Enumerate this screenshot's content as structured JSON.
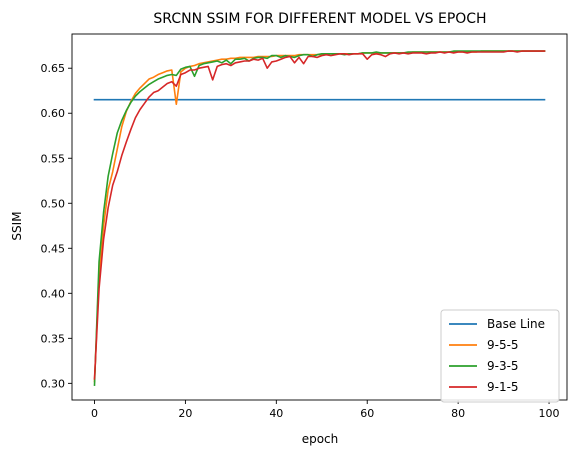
{
  "chart_data": {
    "type": "line",
    "title": "SRCNN SSIM FOR DIFFERENT MODEL VS EPOCH",
    "xlabel": "epoch",
    "ylabel": "SSIM",
    "xlim": [
      -4.95,
      103.95
    ],
    "ylim": [
      0.2815,
      0.688
    ],
    "xticks": [
      0,
      20,
      40,
      60,
      80,
      100
    ],
    "yticks": [
      0.3,
      0.35,
      0.4,
      0.45,
      0.5,
      0.55,
      0.6,
      0.65
    ],
    "xtick_labels": [
      "0",
      "20",
      "40",
      "60",
      "80",
      "100"
    ],
    "ytick_labels": [
      "0.30",
      "0.35",
      "0.40",
      "0.45",
      "0.50",
      "0.55",
      "0.60",
      "0.65"
    ],
    "grid": false,
    "legend_position": "lower-right",
    "series": [
      {
        "name": "Base Line",
        "color": "#1f77b4",
        "x": [
          0,
          99
        ],
        "y": [
          0.615,
          0.615
        ]
      },
      {
        "name": "9-5-5",
        "color": "#ff7f0e",
        "x": [
          0,
          1,
          2,
          3,
          4,
          5,
          6,
          7,
          8,
          9,
          10,
          11,
          12,
          13,
          14,
          15,
          16,
          17,
          18,
          19,
          20,
          21,
          22,
          23,
          24,
          25,
          26,
          27,
          28,
          29,
          30,
          31,
          32,
          33,
          34,
          35,
          36,
          37,
          38,
          39,
          40,
          41,
          42,
          43,
          44,
          45,
          46,
          47,
          48,
          49,
          50,
          51,
          52,
          53,
          54,
          55,
          56,
          57,
          58,
          59,
          60,
          61,
          62,
          63,
          64,
          65,
          66,
          67,
          68,
          69,
          70,
          71,
          72,
          73,
          74,
          75,
          76,
          77,
          78,
          79,
          80,
          81,
          82,
          83,
          84,
          85,
          86,
          87,
          88,
          89,
          90,
          91,
          92,
          93,
          94,
          95,
          96,
          97,
          98,
          99
        ],
        "y": [
          0.302,
          0.42,
          0.475,
          0.515,
          0.535,
          0.56,
          0.585,
          0.602,
          0.613,
          0.622,
          0.628,
          0.633,
          0.638,
          0.64,
          0.643,
          0.645,
          0.647,
          0.648,
          0.61,
          0.646,
          0.65,
          0.652,
          0.653,
          0.655,
          0.656,
          0.657,
          0.658,
          0.659,
          0.66,
          0.66,
          0.661,
          0.661,
          0.662,
          0.662,
          0.662,
          0.662,
          0.663,
          0.663,
          0.663,
          0.663,
          0.664,
          0.664,
          0.664,
          0.664,
          0.664,
          0.665,
          0.665,
          0.665,
          0.665,
          0.665,
          0.665,
          0.666,
          0.666,
          0.666,
          0.666,
          0.666,
          0.666,
          0.666,
          0.666,
          0.667,
          0.667,
          0.667,
          0.667,
          0.667,
          0.667,
          0.667,
          0.667,
          0.667,
          0.667,
          0.667,
          0.668,
          0.668,
          0.668,
          0.668,
          0.668,
          0.668,
          0.668,
          0.668,
          0.668,
          0.668,
          0.668,
          0.668,
          0.668,
          0.668,
          0.668,
          0.669,
          0.669,
          0.669,
          0.669,
          0.669,
          0.669,
          0.669,
          0.669,
          0.669,
          0.669,
          0.669,
          0.669,
          0.669,
          0.669,
          0.669
        ]
      },
      {
        "name": "9-3-5",
        "color": "#2ca02c",
        "x": [
          0,
          1,
          2,
          3,
          4,
          5,
          6,
          7,
          8,
          9,
          10,
          11,
          12,
          13,
          14,
          15,
          16,
          17,
          18,
          19,
          20,
          21,
          22,
          23,
          24,
          25,
          26,
          27,
          28,
          29,
          30,
          31,
          32,
          33,
          34,
          35,
          36,
          37,
          38,
          39,
          40,
          41,
          42,
          43,
          44,
          45,
          46,
          47,
          48,
          49,
          50,
          51,
          52,
          53,
          54,
          55,
          56,
          57,
          58,
          59,
          60,
          61,
          62,
          63,
          64,
          65,
          66,
          67,
          68,
          69,
          70,
          71,
          72,
          73,
          74,
          75,
          76,
          77,
          78,
          79,
          80,
          81,
          82,
          83,
          84,
          85,
          86,
          87,
          88,
          89,
          90,
          91,
          92,
          93,
          94,
          95,
          96,
          97,
          98,
          99
        ],
        "y": [
          0.298,
          0.435,
          0.49,
          0.53,
          0.555,
          0.578,
          0.592,
          0.603,
          0.612,
          0.619,
          0.624,
          0.628,
          0.632,
          0.635,
          0.638,
          0.64,
          0.642,
          0.643,
          0.642,
          0.649,
          0.651,
          0.652,
          0.641,
          0.653,
          0.655,
          0.656,
          0.657,
          0.658,
          0.656,
          0.659,
          0.655,
          0.66,
          0.66,
          0.661,
          0.658,
          0.661,
          0.662,
          0.662,
          0.661,
          0.664,
          0.664,
          0.662,
          0.664,
          0.663,
          0.662,
          0.664,
          0.665,
          0.665,
          0.663,
          0.665,
          0.666,
          0.666,
          0.666,
          0.666,
          0.666,
          0.665,
          0.666,
          0.666,
          0.666,
          0.667,
          0.667,
          0.667,
          0.668,
          0.667,
          0.667,
          0.667,
          0.667,
          0.667,
          0.667,
          0.668,
          0.668,
          0.668,
          0.668,
          0.668,
          0.668,
          0.668,
          0.668,
          0.668,
          0.668,
          0.669,
          0.669,
          0.669,
          0.669,
          0.669,
          0.669,
          0.669,
          0.669,
          0.669,
          0.669,
          0.669,
          0.669,
          0.669,
          0.669,
          0.669,
          0.669,
          0.669,
          0.669,
          0.669,
          0.669,
          0.669
        ]
      },
      {
        "name": "9-1-5",
        "color": "#d62728",
        "x": [
          0,
          1,
          2,
          3,
          4,
          5,
          6,
          7,
          8,
          9,
          10,
          11,
          12,
          13,
          14,
          15,
          16,
          17,
          18,
          19,
          20,
          21,
          22,
          23,
          24,
          25,
          26,
          27,
          28,
          29,
          30,
          31,
          32,
          33,
          34,
          35,
          36,
          37,
          38,
          39,
          40,
          41,
          42,
          43,
          44,
          45,
          46,
          47,
          48,
          49,
          50,
          51,
          52,
          53,
          54,
          55,
          56,
          57,
          58,
          59,
          60,
          61,
          62,
          63,
          64,
          65,
          66,
          67,
          68,
          69,
          70,
          71,
          72,
          73,
          74,
          75,
          76,
          77,
          78,
          79,
          80,
          81,
          82,
          83,
          84,
          85,
          86,
          87,
          88,
          89,
          90,
          91,
          92,
          93,
          94,
          95,
          96,
          97,
          98,
          99
        ],
        "y": [
          0.305,
          0.405,
          0.46,
          0.495,
          0.52,
          0.535,
          0.553,
          0.568,
          0.582,
          0.595,
          0.604,
          0.611,
          0.618,
          0.623,
          0.625,
          0.629,
          0.633,
          0.635,
          0.63,
          0.643,
          0.645,
          0.648,
          0.648,
          0.65,
          0.651,
          0.652,
          0.637,
          0.652,
          0.654,
          0.655,
          0.653,
          0.656,
          0.657,
          0.658,
          0.658,
          0.66,
          0.659,
          0.661,
          0.65,
          0.657,
          0.658,
          0.66,
          0.662,
          0.663,
          0.656,
          0.662,
          0.655,
          0.663,
          0.663,
          0.662,
          0.664,
          0.665,
          0.664,
          0.665,
          0.666,
          0.666,
          0.665,
          0.666,
          0.666,
          0.666,
          0.66,
          0.665,
          0.666,
          0.665,
          0.663,
          0.666,
          0.667,
          0.666,
          0.667,
          0.666,
          0.667,
          0.667,
          0.667,
          0.666,
          0.667,
          0.667,
          0.668,
          0.667,
          0.668,
          0.667,
          0.668,
          0.668,
          0.667,
          0.668,
          0.668,
          0.668,
          0.668,
          0.668,
          0.668,
          0.668,
          0.668,
          0.669,
          0.669,
          0.668,
          0.669,
          0.669,
          0.669,
          0.669,
          0.669,
          0.669
        ]
      }
    ]
  }
}
